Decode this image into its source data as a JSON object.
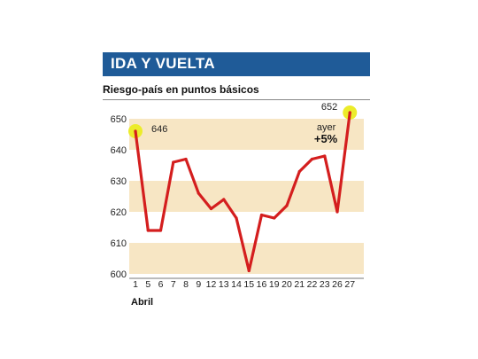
{
  "header": {
    "title": "IDA Y VUELTA",
    "subtitle": "Riesgo-país en puntos básicos"
  },
  "chart_data": {
    "type": "line",
    "title": "IDA Y VUELTA",
    "subtitle": "Riesgo-país en puntos básicos",
    "xlabel": "Abril",
    "ylabel": "",
    "categories": [
      "1",
      "5",
      "6",
      "7",
      "8",
      "9",
      "12",
      "13",
      "14",
      "15",
      "16",
      "19",
      "20",
      "21",
      "22",
      "23",
      "26",
      "27"
    ],
    "series": [
      {
        "values": [
          646,
          614,
          614,
          636,
          637,
          626,
          621,
          624,
          618,
          601,
          619,
          618,
          622,
          633,
          637,
          638,
          620,
          652
        ]
      }
    ],
    "ylim": [
      600,
      655
    ],
    "yticks": [
      600,
      610,
      620,
      630,
      640,
      650
    ],
    "bands": [
      [
        640,
        650
      ],
      [
        620,
        630
      ],
      [
        600,
        610
      ]
    ],
    "annotations": {
      "first_value": "646",
      "last_value": "652",
      "change_label": "ayer",
      "change_value": "+5%"
    },
    "colors": {
      "line": "#d41e1e",
      "band": "#f7e6c4",
      "highlight": "#ecec2a",
      "banner": "#1f5b98"
    },
    "grid": false,
    "legend": "none"
  }
}
